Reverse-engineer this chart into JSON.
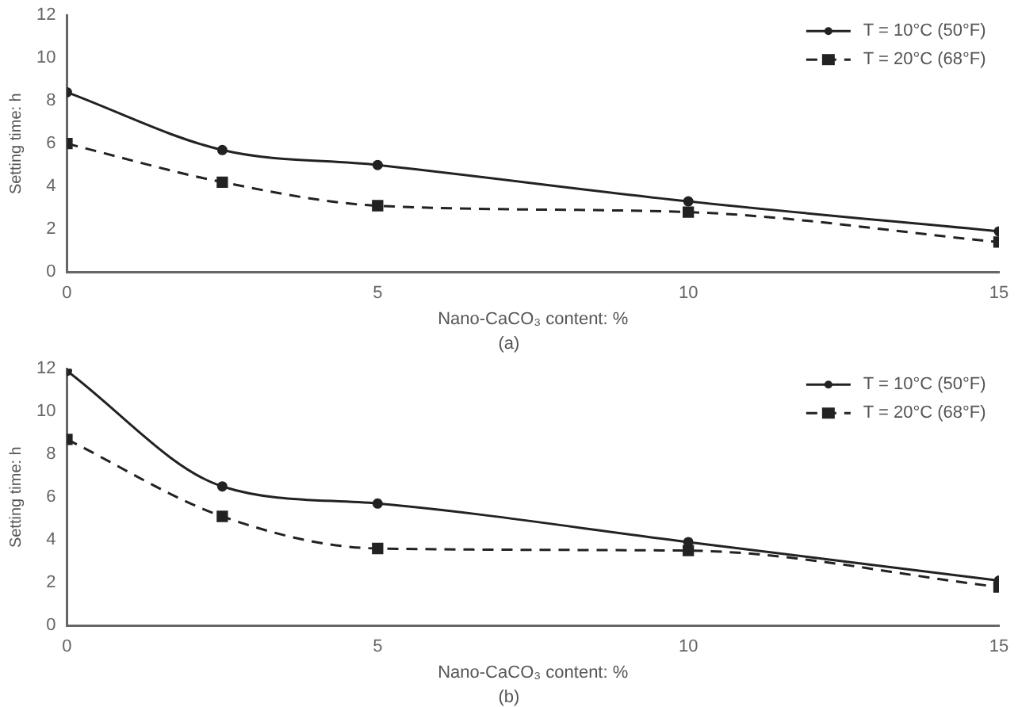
{
  "chart_data": [
    {
      "type": "line",
      "x": [
        0,
        2.5,
        5,
        10,
        15
      ],
      "xlabel": "Nano-CaCO₃ content: %",
      "ylabel": "Setting time: h",
      "annotations": [
        "(a)"
      ],
      "xlim": [
        0,
        15
      ],
      "xticks": [
        0,
        5,
        10,
        15
      ],
      "ylim": [
        0,
        12
      ],
      "yticks": [
        0,
        2,
        4,
        6,
        8,
        10,
        12
      ],
      "grid": false,
      "legend": "top right",
      "series": [
        {
          "name": "T = 10°C (50°F)",
          "color": "#222222",
          "values": [
            8.4,
            5.7,
            5.0,
            3.3,
            1.9
          ],
          "marker": "circle",
          "line_style": "solid"
        },
        {
          "name": "T = 20°C (68°F)",
          "color": "#222222",
          "values": [
            6.0,
            4.2,
            3.1,
            2.8,
            1.4
          ],
          "marker": "square",
          "line_style": "dashed"
        }
      ]
    },
    {
      "type": "line",
      "x": [
        0,
        2.5,
        5,
        10,
        15
      ],
      "xlabel": "Nano-CaCO₃ content: %",
      "ylabel": "Setting time: h",
      "annotations": [
        "(b)"
      ],
      "xlim": [
        0,
        15
      ],
      "xticks": [
        0,
        5,
        10,
        15
      ],
      "ylim": [
        0,
        12
      ],
      "yticks": [
        0,
        2,
        4,
        6,
        8,
        10,
        12
      ],
      "grid": false,
      "legend": "top right",
      "series": [
        {
          "name": "T = 10°C (50°F)",
          "color": "#222222",
          "values": [
            11.9,
            6.5,
            5.7,
            3.9,
            2.1
          ],
          "marker": "circle",
          "line_style": "solid"
        },
        {
          "name": "T = 20°C (68°F)",
          "color": "#222222",
          "values": [
            8.7,
            5.1,
            3.6,
            3.5,
            1.8
          ],
          "marker": "square",
          "line_style": "dashed"
        }
      ]
    }
  ]
}
